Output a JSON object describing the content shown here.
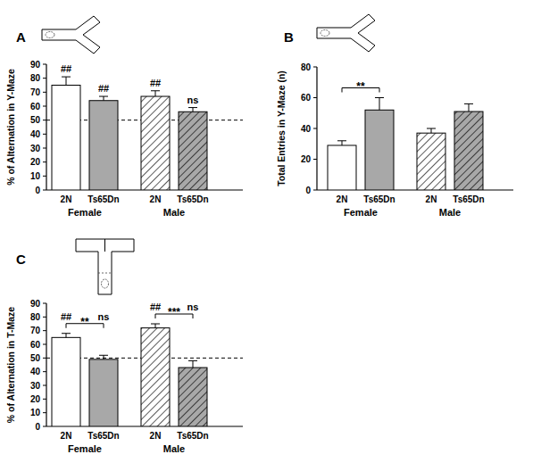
{
  "chart_data": [
    {
      "type": "bar",
      "title": "A",
      "y_label": "% of Alternation in Y-Maze",
      "categories": [
        "2N",
        "Ts65Dn",
        "2N",
        "Ts65Dn"
      ],
      "groups": [
        "Female",
        "Male"
      ],
      "values": [
        75,
        64,
        67,
        56
      ],
      "errors": [
        6,
        3,
        4,
        3
      ],
      "colors": [
        "#ffffff",
        "#a8a8a8",
        "#ffffff",
        "#a8a8a8"
      ],
      "annotations": [
        "##",
        "##",
        "##",
        "ns"
      ],
      "ref_line": 50,
      "ylim": [
        0,
        90
      ],
      "yticks": [
        0,
        10,
        20,
        30,
        40,
        50,
        60,
        70,
        80,
        90
      ]
    },
    {
      "type": "bar",
      "title": "B",
      "y_label": "Total Entries in Y-Maze (n)",
      "categories": [
        "2N",
        "Ts65Dn",
        "2N",
        "Ts65Dn"
      ],
      "groups": [
        "Female",
        "Male"
      ],
      "values": [
        29,
        52,
        37,
        51
      ],
      "errors": [
        3,
        8,
        3,
        5
      ],
      "colors": [
        "#ffffff",
        "#a8a8a8",
        "#ffffff",
        "#a8a8a8"
      ],
      "comparisons": [
        {
          "from": 0,
          "to": 1,
          "label": "**"
        }
      ],
      "ylim": [
        0,
        80
      ],
      "yticks": [
        0,
        20,
        40,
        60,
        80
      ]
    },
    {
      "type": "bar",
      "title": "C",
      "y_label": "% of Alternation in T-Maze",
      "categories": [
        "2N",
        "Ts65Dn",
        "2N",
        "Ts65Dn"
      ],
      "groups": [
        "Female",
        "Male"
      ],
      "values": [
        65,
        49,
        72,
        43
      ],
      "errors": [
        3,
        3,
        3,
        5
      ],
      "colors": [
        "#ffffff",
        "#a8a8a8",
        "#ffffff",
        "#a8a8a8"
      ],
      "annotations": [
        "##",
        "ns",
        "##",
        "ns"
      ],
      "comparisons": [
        {
          "from": 0,
          "to": 1,
          "label": "**"
        },
        {
          "from": 2,
          "to": 3,
          "label": "***"
        }
      ],
      "ref_line": 50,
      "ylim": [
        0,
        90
      ],
      "yticks": [
        0,
        10,
        20,
        30,
        40,
        50,
        60,
        70,
        80,
        90
      ]
    }
  ]
}
